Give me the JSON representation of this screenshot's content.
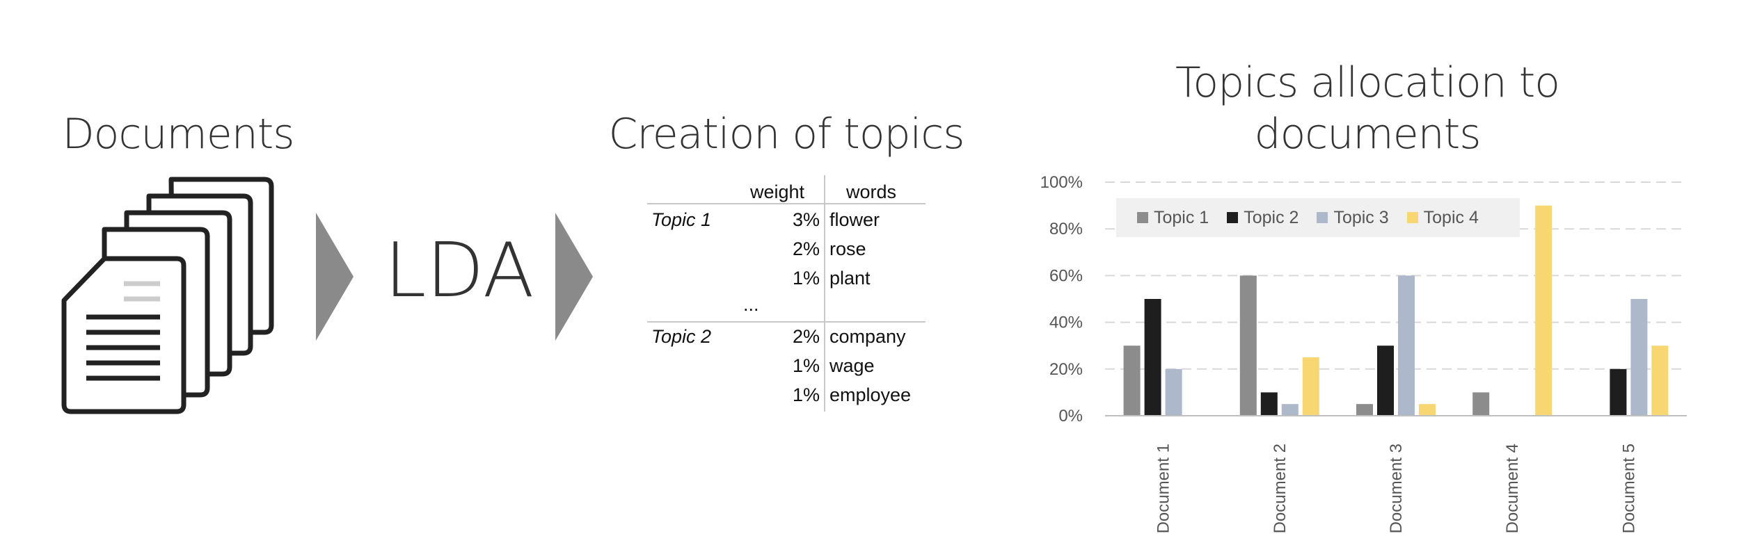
{
  "sections": {
    "documents_title": "Documents",
    "lda_label": "LDA",
    "topics_title": "Creation of topics",
    "allocation_title_line1": "Topics allocation to",
    "allocation_title_line2": "documents"
  },
  "topic_table": {
    "headers": {
      "weight": "weight",
      "words": "words"
    },
    "ellipsis": "...",
    "topics": [
      {
        "name": "Topic 1",
        "rows": [
          {
            "weight": "3%",
            "word": "flower"
          },
          {
            "weight": "2%",
            "word": "rose"
          },
          {
            "weight": "1%",
            "word": "plant"
          }
        ]
      },
      {
        "name": "Topic 2",
        "rows": [
          {
            "weight": "2%",
            "word": "company"
          },
          {
            "weight": "1%",
            "word": "wage"
          },
          {
            "weight": "1%",
            "word": "employee"
          }
        ]
      }
    ]
  },
  "icons": {
    "documents": "document-stack-icon",
    "arrow": "chevron-right-icon"
  },
  "chart_data": {
    "type": "bar",
    "categories": [
      "Document 1",
      "Document 2",
      "Document 3",
      "Document 4",
      "Document 5"
    ],
    "series": [
      {
        "name": "Topic 1",
        "color": "#8c8c8c",
        "values": [
          30,
          60,
          5,
          10,
          0
        ]
      },
      {
        "name": "Topic 2",
        "color": "#1e1e1e",
        "values": [
          50,
          10,
          30,
          0,
          20
        ]
      },
      {
        "name": "Topic 3",
        "color": "#adb9ca",
        "values": [
          20,
          5,
          60,
          0,
          50
        ]
      },
      {
        "name": "Topic 4",
        "color": "#f8d672",
        "values": [
          0,
          25,
          5,
          90,
          30
        ]
      }
    ],
    "yticks": [
      "0%",
      "20%",
      "40%",
      "60%",
      "80%",
      "100%"
    ],
    "ylim": [
      0,
      100
    ],
    "grid": true,
    "legend_position": "top-left"
  }
}
